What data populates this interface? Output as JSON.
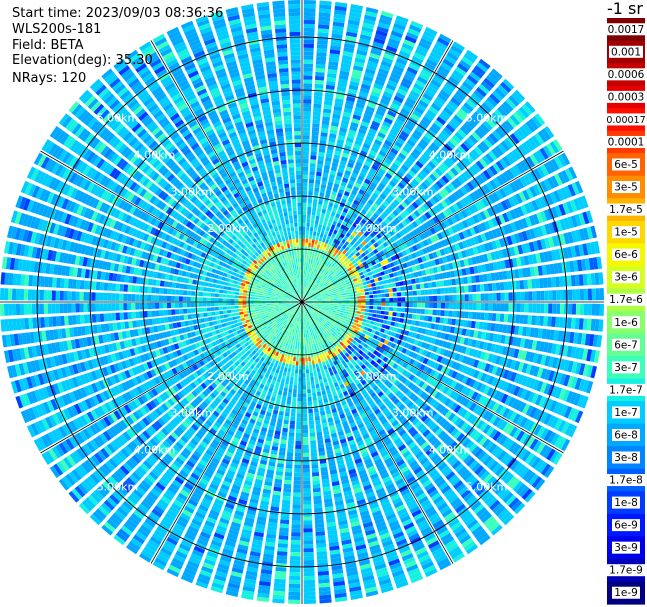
{
  "info": {
    "start_time": "Start time: 2023/09/03 08:36:36",
    "instrument": "WLS200s-181",
    "field": "Field: BETA",
    "elevation": "Elevation(deg): 35.30",
    "nrays": "NRays: 120"
  },
  "chart_data": {
    "type": "heatmap",
    "projection": "polar-ppi",
    "title": "",
    "nrays": 120,
    "range_rings_km": [
      1,
      2,
      3,
      4,
      5
    ],
    "range_ring_labels": [
      "2.00km",
      "3.00km",
      "4.00km",
      "5.00km"
    ],
    "max_range_km": 5.7,
    "azimuth_lines_deg": [
      0,
      30,
      60,
      90,
      120,
      150,
      180,
      210,
      240,
      270,
      300,
      330
    ],
    "features": {
      "aerosol_ring_range_km": 1.12,
      "background_level": "1e-7",
      "near_field_level": "6e-7"
    },
    "colorbar": {
      "title": "-1 sr",
      "scale": "log",
      "labels": [
        "0.0017",
        "0.001",
        "0.0006",
        "0.0003",
        "0.00017",
        "0.0001",
        "6e-5",
        "3e-5",
        "1.7e-5",
        "1e-5",
        "6e-6",
        "3e-6",
        "1.7e-6",
        "1e-6",
        "6e-7",
        "3e-7",
        "1.7e-7",
        "1e-7",
        "6e-8",
        "3e-8",
        "1.7e-8",
        "1e-8",
        "6e-9",
        "3e-9",
        "1.7e-9",
        "1e-9"
      ],
      "colors": [
        "#7f0000",
        "#a00000",
        "#c40000",
        "#e40000",
        "#ff0c00",
        "#ff3a00",
        "#ff6400",
        "#ff8d00",
        "#ffb400",
        "#ffd800",
        "#f6f800",
        "#d6ff20",
        "#b0ff47",
        "#8aff6d",
        "#63ff94",
        "#3cffbb",
        "#16f0e1",
        "#00ccff",
        "#00a8ff",
        "#0084ff",
        "#0060ff",
        "#003cff",
        "#0018ff",
        "#0000ed",
        "#0000b8",
        "#000080"
      ]
    }
  }
}
